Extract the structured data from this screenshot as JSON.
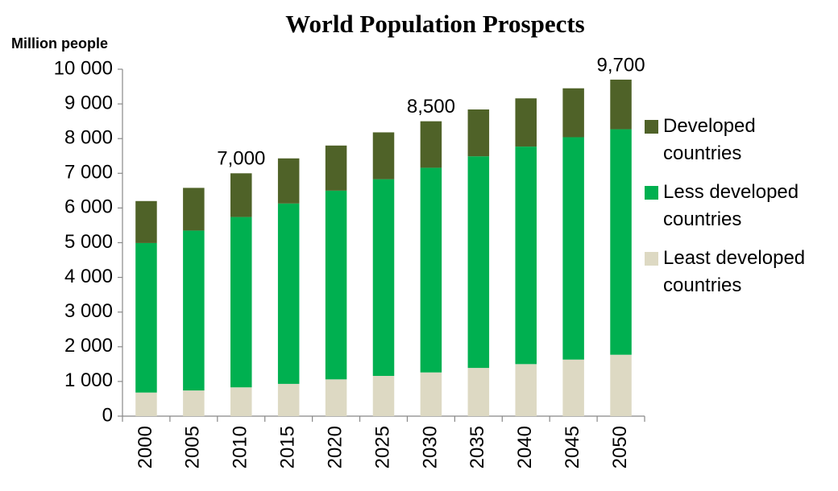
{
  "chart_data": {
    "type": "stacked_bar",
    "title": "World Population Prospects",
    "y_label": "Million people",
    "categories": [
      "2000",
      "2005",
      "2010",
      "2015",
      "2020",
      "2025",
      "2030",
      "2035",
      "2040",
      "2045",
      "2050"
    ],
    "series": [
      {
        "name": "Least developed countries",
        "color": "#ddd9c3",
        "values": [
          680,
          740,
          830,
          930,
          1060,
          1160,
          1260,
          1390,
          1500,
          1630,
          1770
        ]
      },
      {
        "name": "Less developed countries",
        "color": "#00b050",
        "values": [
          4310,
          4610,
          4910,
          5200,
          5440,
          5670,
          5900,
          6100,
          6270,
          6410,
          6500
        ]
      },
      {
        "name": "Developed countries",
        "color": "#4f6228",
        "values": [
          1210,
          1230,
          1260,
          1300,
          1300,
          1350,
          1340,
          1350,
          1390,
          1410,
          1430
        ]
      }
    ],
    "annotations": [
      {
        "x": "2010",
        "y": 7000,
        "text": "7,000"
      },
      {
        "x": "2030",
        "y": 8500,
        "text": "8,500"
      },
      {
        "x": "2050",
        "y": 9700,
        "text": "9,700"
      }
    ],
    "ylim": [
      0,
      10000
    ],
    "yticks": [
      0,
      {
        "value": 1000,
        "label": "1 000"
      },
      {
        "value": 2000,
        "label": "2 000"
      },
      {
        "value": 3000,
        "label": "3 000"
      },
      {
        "value": 4000,
        "label": "4 000"
      },
      {
        "value": 5000,
        "label": "5 000"
      },
      {
        "value": 6000,
        "label": "6 000"
      },
      {
        "value": 7000,
        "label": "7 000"
      },
      {
        "value": 8000,
        "label": "8 000"
      },
      {
        "value": 9000,
        "label": "9 000"
      },
      {
        "value": 10000,
        "label": "10 000"
      }
    ],
    "legend": "right",
    "grid": false
  }
}
